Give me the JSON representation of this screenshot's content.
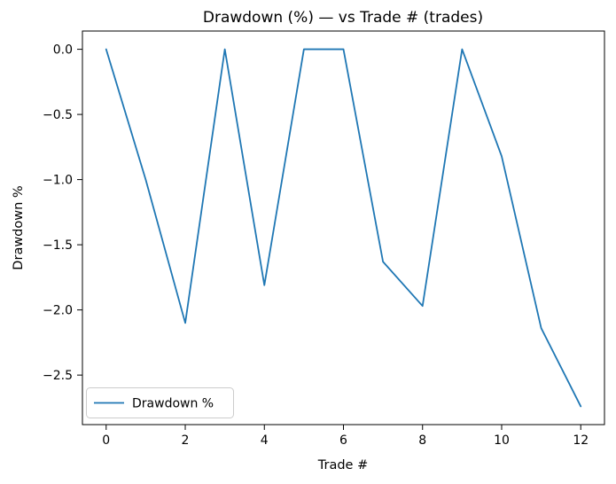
{
  "figure": {
    "background": "#ffffff",
    "frame_color": "#000000",
    "tick_color": "#000000",
    "text_color": "#000000"
  },
  "chart_data": {
    "type": "line",
    "title": "Drawdown (%) — vs Trade # (trades)",
    "xlabel": "Trade #",
    "ylabel": "Drawdown %",
    "series": [
      {
        "name": "Drawdown %",
        "color": "#1f77b4",
        "x": [
          0,
          1,
          2,
          3,
          4,
          5,
          6,
          7,
          8,
          9,
          10,
          11,
          12
        ],
        "values": [
          0.0,
          -1.0,
          -2.1,
          0.0,
          -1.81,
          0.0,
          0.0,
          -1.63,
          -1.97,
          0.0,
          -0.82,
          -2.14,
          -2.74
        ]
      }
    ],
    "xticks": [
      0,
      2,
      4,
      6,
      8,
      10,
      12
    ],
    "yticks": [
      0.0,
      -0.5,
      -1.0,
      -1.5,
      -2.0,
      -2.5
    ],
    "xlim": [
      -0.6,
      12.6
    ],
    "ylim": [
      -2.88,
      0.14
    ],
    "grid": false,
    "legend": {
      "label": "Drawdown %",
      "position": "lower left",
      "border_color": "#cccccc",
      "background": "#ffffff"
    }
  }
}
